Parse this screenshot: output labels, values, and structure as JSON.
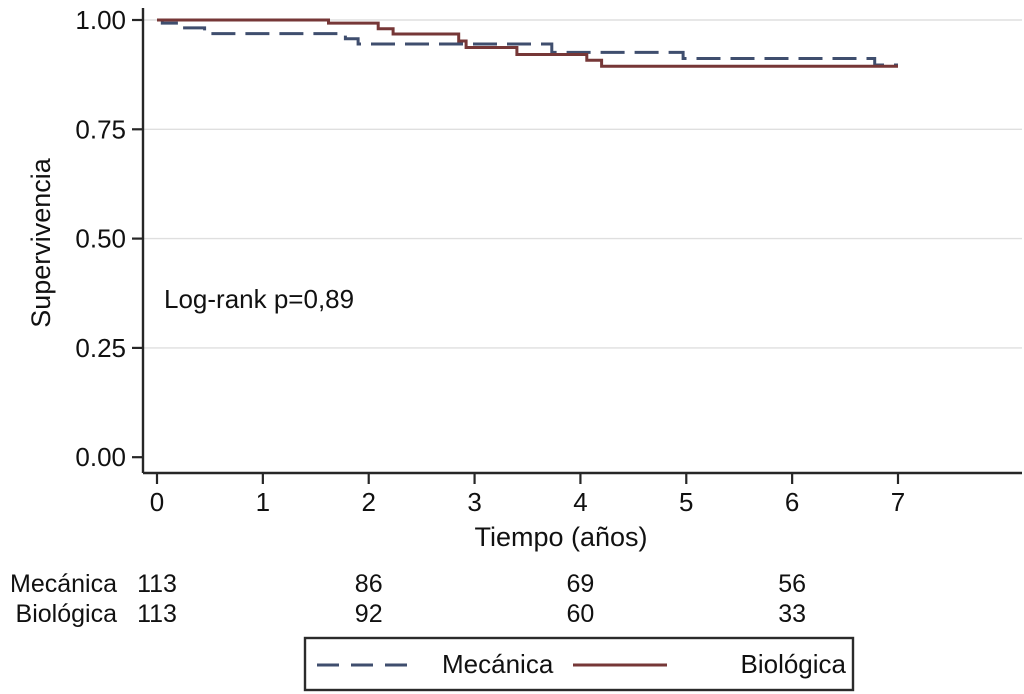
{
  "chart_data": {
    "type": "line",
    "subtype": "kaplan-meier-step",
    "title": "",
    "xlabel": "Tiempo (años)",
    "ylabel": "Supervivencia",
    "annotation": "Log-rank p=0,89",
    "xlim": [
      0,
      8.2
    ],
    "ylim": [
      0,
      1.0
    ],
    "grid": "horizontal light gray at y ticks",
    "legend_position": "bottom",
    "xticks": [
      0,
      1,
      2,
      3,
      4,
      5,
      6,
      7
    ],
    "xtick_labels": [
      "0",
      "1",
      "2",
      "3",
      "4",
      "5",
      "6",
      "7"
    ],
    "yticks": [
      1.0,
      0.75,
      0.5,
      0.25,
      0.0
    ],
    "ytick_labels": [
      "1.00",
      "0.75",
      "0.50",
      "0.25",
      "0.00"
    ],
    "series": [
      {
        "name": "Mecánica",
        "color": "#3f4e6e",
        "style": "dashed",
        "points": [
          [
            0,
            1.0
          ],
          [
            0.05,
            1.0
          ],
          [
            0.05,
            0.993
          ],
          [
            0.2,
            0.993
          ],
          [
            0.2,
            0.982
          ],
          [
            0.45,
            0.982
          ],
          [
            0.45,
            0.969
          ],
          [
            1.78,
            0.969
          ],
          [
            1.78,
            0.957
          ],
          [
            1.9,
            0.957
          ],
          [
            1.9,
            0.945
          ],
          [
            3.73,
            0.945
          ],
          [
            3.73,
            0.926
          ],
          [
            4.97,
            0.926
          ],
          [
            4.97,
            0.912
          ],
          [
            6.78,
            0.912
          ],
          [
            6.78,
            0.897
          ],
          [
            7.0,
            0.897
          ]
        ]
      },
      {
        "name": "Biológica",
        "color": "#763737",
        "style": "solid",
        "points": [
          [
            0,
            1.0
          ],
          [
            1.62,
            1.0
          ],
          [
            1.62,
            0.993
          ],
          [
            2.09,
            0.993
          ],
          [
            2.09,
            0.98
          ],
          [
            2.23,
            0.98
          ],
          [
            2.23,
            0.968
          ],
          [
            2.85,
            0.968
          ],
          [
            2.85,
            0.952
          ],
          [
            2.92,
            0.952
          ],
          [
            2.92,
            0.937
          ],
          [
            3.4,
            0.937
          ],
          [
            3.4,
            0.921
          ],
          [
            4.06,
            0.921
          ],
          [
            4.06,
            0.908
          ],
          [
            4.2,
            0.908
          ],
          [
            4.2,
            0.894
          ],
          [
            7.0,
            0.894
          ]
        ]
      }
    ],
    "risk_table": {
      "columns_t": [
        0,
        2,
        4,
        6
      ],
      "rows": [
        {
          "label": "Mecánica",
          "values": [
            "113",
            "86",
            "69",
            "56"
          ]
        },
        {
          "label": "Biológica",
          "values": [
            "113",
            "92",
            "60",
            "33"
          ]
        }
      ]
    }
  }
}
